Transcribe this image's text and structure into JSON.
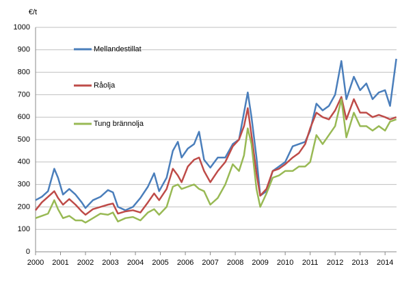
{
  "chart_data": {
    "type": "line",
    "y_label": "€/t",
    "x": [
      2000,
      2000.25,
      2000.5,
      2000.75,
      2000.9,
      2001.1,
      2001.35,
      2001.6,
      2001.85,
      2002.0,
      2002.3,
      2002.6,
      2002.9,
      2003.1,
      2003.3,
      2003.6,
      2003.9,
      2004.2,
      2004.5,
      2004.75,
      2004.95,
      2005.25,
      2005.5,
      2005.7,
      2005.85,
      2006.1,
      2006.35,
      2006.55,
      2006.75,
      2007.0,
      2007.3,
      2007.6,
      2007.9,
      2008.15,
      2008.35,
      2008.5,
      2008.65,
      2008.85,
      2009.0,
      2009.25,
      2009.5,
      2009.75,
      2010.0,
      2010.3,
      2010.55,
      2010.8,
      2011.0,
      2011.25,
      2011.5,
      2011.75,
      2012.0,
      2012.25,
      2012.45,
      2012.75,
      2013.0,
      2013.25,
      2013.5,
      2013.75,
      2014.0,
      2014.2,
      2014.45
    ],
    "series": [
      {
        "name": "Mellandestillat",
        "color": "#4a7ebb",
        "values": [
          230,
          245,
          270,
          370,
          330,
          255,
          280,
          255,
          220,
          195,
          230,
          245,
          275,
          265,
          200,
          185,
          200,
          240,
          290,
          350,
          270,
          330,
          450,
          490,
          420,
          460,
          480,
          535,
          410,
          375,
          420,
          420,
          480,
          500,
          620,
          710,
          600,
          420,
          250,
          270,
          360,
          380,
          400,
          470,
          480,
          490,
          540,
          660,
          630,
          650,
          700,
          850,
          680,
          780,
          720,
          750,
          680,
          710,
          720,
          650,
          860
        ]
      },
      {
        "name": "Råolja",
        "color": "#be4b48",
        "values": [
          185,
          220,
          245,
          270,
          240,
          210,
          235,
          210,
          180,
          165,
          190,
          200,
          210,
          215,
          170,
          180,
          185,
          175,
          220,
          260,
          230,
          280,
          370,
          340,
          310,
          380,
          410,
          420,
          360,
          310,
          360,
          400,
          470,
          500,
          560,
          640,
          520,
          350,
          250,
          280,
          360,
          370,
          390,
          420,
          440,
          480,
          550,
          620,
          600,
          590,
          630,
          690,
          590,
          680,
          620,
          620,
          600,
          610,
          600,
          590,
          600
        ]
      },
      {
        "name": "Tung brännolja",
        "color": "#98b954",
        "values": [
          150,
          160,
          170,
          230,
          190,
          150,
          160,
          140,
          140,
          130,
          150,
          170,
          165,
          175,
          135,
          150,
          155,
          140,
          175,
          190,
          165,
          200,
          290,
          300,
          280,
          290,
          300,
          280,
          270,
          210,
          240,
          300,
          390,
          360,
          430,
          550,
          480,
          280,
          200,
          260,
          330,
          340,
          360,
          360,
          380,
          380,
          400,
          520,
          480,
          520,
          560,
          680,
          510,
          620,
          560,
          560,
          540,
          560,
          540,
          580,
          590
        ]
      }
    ],
    "xlim": [
      2000,
      2014.46
    ],
    "xticks": [
      2000,
      2001,
      2002,
      2003,
      2004,
      2005,
      2006,
      2007,
      2008,
      2009,
      2010,
      2011,
      2012,
      2013,
      2014
    ],
    "ylim": [
      0,
      1000
    ],
    "yticks": [
      0,
      100,
      200,
      300,
      400,
      500,
      600,
      700,
      800,
      900,
      1000
    ],
    "grid": true,
    "legend": "left"
  }
}
